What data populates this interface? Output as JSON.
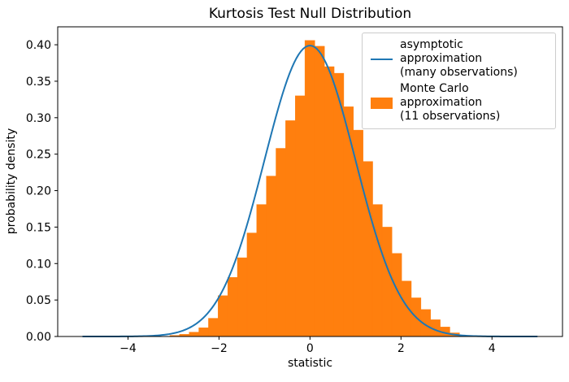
{
  "figure": {
    "title": "Kurtosis Test Null Distribution",
    "xlabel": "statistic",
    "ylabel": "probability density",
    "background_color": "#ffffff",
    "spine_color": "#000000",
    "tick_label_color": "#000000"
  },
  "legend": {
    "border_color": "#cccccc",
    "items": [
      {
        "swatch": "line",
        "color": "#1f77b4",
        "label_line1": "asymptotic approximation",
        "label_line2": "(many observations)"
      },
      {
        "swatch": "patch",
        "color": "#ff7f0e",
        "label_line1": "Monte Carlo approximation",
        "label_line2": "(11 observations)"
      }
    ]
  },
  "chart_data": {
    "type": "bar",
    "subtype": "histogram-with-density-curve",
    "title": "Kurtosis Test Null Distribution",
    "xlabel": "statistic",
    "ylabel": "probability density",
    "xlim": [
      -5.545,
      5.55
    ],
    "ylim": [
      0,
      0.4246
    ],
    "xticks": [
      -4,
      -2,
      0,
      2,
      4
    ],
    "yticks": [
      0.0,
      0.05,
      0.1,
      0.15,
      0.2,
      0.25,
      0.3,
      0.35,
      0.4
    ],
    "grid": false,
    "legend_position": "upper right",
    "series": [
      {
        "name": "asymptotic approximation (many observations)",
        "type": "line",
        "color": "#1f77b4",
        "line_width": 2,
        "curve": "normal_pdf",
        "mean": 0,
        "std": 1,
        "peak_density": 0.3989,
        "x_range": [
          -5,
          5
        ]
      },
      {
        "name": "Monte Carlo approximation (11 observations)",
        "type": "histogram",
        "color": "#ff7f0e",
        "bin_start": -3.08,
        "bin_width": 0.212,
        "densities": [
          0.0015,
          0.003,
          0.006,
          0.012,
          0.025,
          0.056,
          0.081,
          0.108,
          0.142,
          0.181,
          0.22,
          0.258,
          0.296,
          0.33,
          0.406,
          0.398,
          0.37,
          0.361,
          0.315,
          0.283,
          0.24,
          0.181,
          0.15,
          0.114,
          0.076,
          0.053,
          0.037,
          0.023,
          0.013,
          0.005
        ]
      }
    ]
  }
}
